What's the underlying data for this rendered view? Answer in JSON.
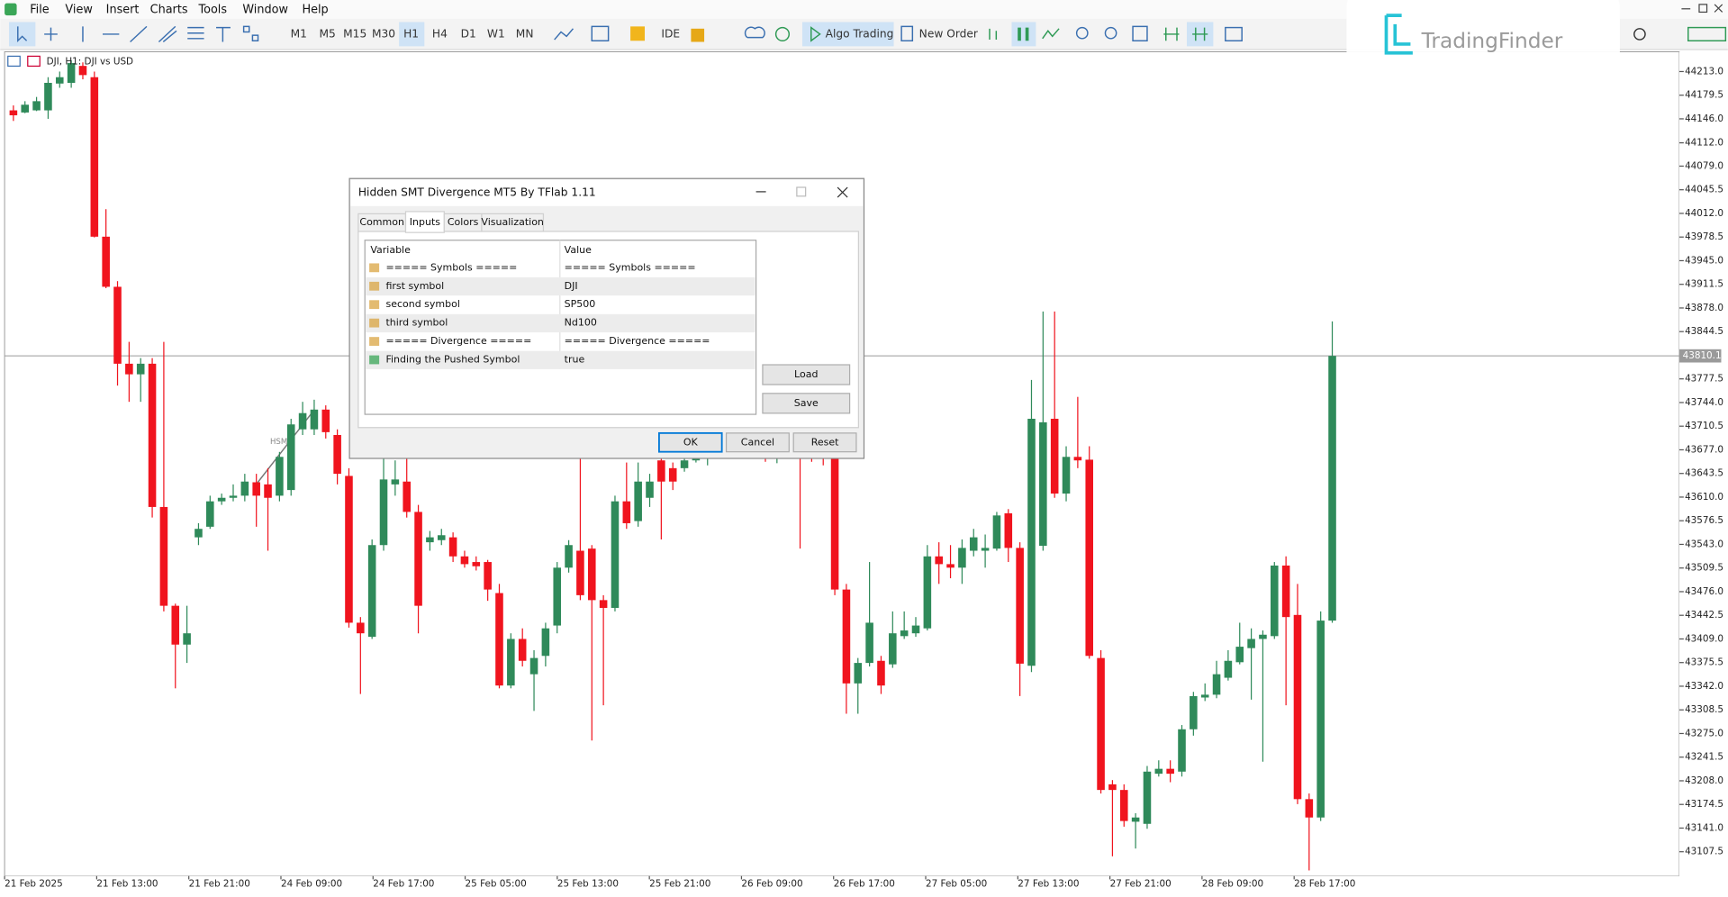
{
  "menu": [
    "File",
    "View",
    "Insert",
    "Charts",
    "Tools",
    "Window",
    "Help"
  ],
  "toolbar": {
    "timeframes": [
      "M1",
      "M5",
      "M15",
      "M30",
      "H1",
      "H4",
      "D1",
      "W1",
      "MN"
    ],
    "active_timeframe": "H1",
    "ide": "IDE",
    "algo_trading": "Algo Trading",
    "new_order": "New Order"
  },
  "watermark": "TradingFinder",
  "chart_data": {
    "type": "candlestick",
    "title": "DJI, H1: DJI vs USD",
    "up_color": "#2f8a5a",
    "down_color": "#f0141e",
    "open": [
      44158,
      44155,
      44158,
      44158,
      44196,
      44197,
      44221,
      44205,
      43979,
      43908,
      43799,
      43784,
      43799,
      43596,
      43456,
      43401,
      43553,
      43568,
      43604,
      43609,
      43612,
      43631,
      43628,
      43612,
      43620,
      43706,
      43706,
      43734,
      43698,
      43640,
      43432,
      43412,
      43542,
      43628,
      43632,
      43589,
      43546,
      43549,
      43553,
      43526,
      43518,
      43518,
      43474,
      43343,
      43409,
      43359,
      43385,
      43428,
      43510,
      43534,
      43537,
      43464,
      43453,
      43604,
      43576,
      43609,
      43662,
      43651,
      43651,
      43662,
      43667,
      43682,
      43676,
      43698,
      43712,
      43688,
      43668,
      43684,
      43702,
      43690,
      43672,
      43667,
      43479,
      43346,
      43375,
      43378,
      43373,
      43413,
      43417,
      43424,
      43526,
      43515,
      43510,
      43534,
      43534,
      43537,
      43587,
      43538,
      43371,
      43541,
      43721,
      43615,
      43667,
      43663,
      43382,
      43203,
      43195,
      43150,
      43147,
      43218,
      43225,
      43221,
      43281,
      43326,
      43330,
      43354,
      43376,
      43396,
      43409,
      43413,
      43513,
      43443,
      43182,
      43156,
      43435
    ],
    "high": [
      44165,
      44171,
      44177,
      44205,
      44213,
      44229,
      44226,
      44213,
      44018,
      43916,
      43830,
      43807,
      43807,
      43830,
      43459,
      43456,
      43573,
      43612,
      43615,
      43628,
      43643,
      43643,
      43651,
      43674,
      43721,
      43745,
      43748,
      43740,
      43706,
      43651,
      43440,
      43550,
      43667,
      43662,
      43667,
      43599,
      43562,
      43565,
      43560,
      43534,
      43526,
      43521,
      43487,
      43417,
      43424,
      43393,
      43432,
      43518,
      43549,
      43667,
      43542,
      43471,
      43612,
      43659,
      43659,
      43643,
      43674,
      43659,
      43670,
      43672,
      43690,
      43698,
      43705,
      43720,
      43725,
      43700,
      43690,
      43710,
      43715,
      43705,
      43690,
      43674,
      43487,
      43382,
      43518,
      43385,
      43448,
      43448,
      43440,
      43542,
      43546,
      43542,
      43550,
      43565,
      43557,
      43589,
      43593,
      43546,
      43776,
      43873,
      43873,
      43682,
      43752,
      43682,
      43393,
      43209,
      43203,
      43162,
      43229,
      43237,
      43237,
      43287,
      43334,
      43346,
      43378,
      43393,
      43432,
      43424,
      43421,
      43518,
      43526,
      43487,
      43190,
      43448,
      43859
    ],
    "low": [
      44143,
      44154,
      44157,
      44146,
      44190,
      44190,
      44202,
      43978,
      43906,
      43768,
      43745,
      43745,
      43581,
      43448,
      43339,
      43375,
      43542,
      43565,
      43599,
      43604,
      43604,
      43568,
      43534,
      43604,
      43612,
      43698,
      43698,
      43693,
      43628,
      43425,
      43331,
      43409,
      43534,
      43612,
      43581,
      43417,
      43534,
      43542,
      43518,
      43510,
      43506,
      43463,
      43339,
      43339,
      43370,
      43307,
      43370,
      43417,
      43503,
      43464,
      43265,
      43315,
      43448,
      43565,
      43568,
      43596,
      43550,
      43620,
      43646,
      43659,
      43655,
      43670,
      43668,
      43690,
      43680,
      43660,
      43658,
      43675,
      43537,
      43660,
      43655,
      43471,
      43303,
      43303,
      43370,
      43331,
      43368,
      43409,
      43412,
      43421,
      43487,
      43495,
      43487,
      43526,
      43510,
      43534,
      43518,
      43328,
      43362,
      43534,
      43609,
      43604,
      43651,
      43381,
      43190,
      43101,
      43143,
      43112,
      43140,
      43214,
      43206,
      43214,
      43272,
      43321,
      43325,
      43350,
      43373,
      43323,
      43235,
      43409,
      43315,
      43175,
      43081,
      43151,
      43432
    ],
    "close": [
      44151,
      44166,
      44171,
      44197,
      44205,
      44225,
      44208,
      43979,
      43908,
      43799,
      43784,
      43799,
      43596,
      43456,
      43401,
      43417,
      43565,
      43604,
      43609,
      43612,
      43632,
      43612,
      43609,
      43667,
      43713,
      43729,
      43734,
      43702,
      43643,
      43432,
      43417,
      43542,
      43635,
      43635,
      43589,
      43456,
      43553,
      43556,
      43526,
      43515,
      43512,
      43479,
      43343,
      43409,
      43378,
      43382,
      43424,
      43510,
      43542,
      43471,
      43464,
      43453,
      43604,
      43573,
      43632,
      43632,
      43632,
      43632,
      43662,
      43667,
      43682,
      43676,
      43698,
      43712,
      43688,
      43668,
      43684,
      43702,
      43690,
      43672,
      43666,
      43479,
      43346,
      43375,
      43432,
      43343,
      43417,
      43421,
      43428,
      43526,
      43515,
      43510,
      43538,
      43553,
      43538,
      43584,
      43538,
      43374,
      43721,
      43716,
      43615,
      43667,
      43662,
      43385,
      43195,
      43195,
      43151,
      43156,
      43221,
      43225,
      43218,
      43281,
      43328,
      43330,
      43359,
      43378,
      43398,
      43409,
      43415,
      43513,
      43440,
      43182,
      43156,
      43435,
      43810
    ],
    "ylim": [
      43073,
      44241
    ],
    "yticks": [
      {
        "value": 44213,
        "label": "44213.0"
      },
      44179.5,
      {
        "value": 44146,
        "label": "44146.0"
      },
      {
        "value": 44112,
        "label": "44112.0"
      },
      {
        "value": 44079,
        "label": "44079.0"
      },
      44045.5,
      {
        "value": 44012,
        "label": "44012.0"
      },
      43978.5,
      {
        "value": 43945,
        "label": "43945.0"
      },
      43911.5,
      {
        "value": 43878,
        "label": "43878.0"
      },
      43844.5,
      43777.5,
      {
        "value": 43744,
        "label": "43744.0"
      },
      43710.5,
      {
        "value": 43677,
        "label": "43677.0"
      },
      43643.5,
      {
        "value": 43610,
        "label": "43610.0"
      },
      43576.5,
      {
        "value": 43543,
        "label": "43543.0"
      },
      43509.5,
      {
        "value": 43476,
        "label": "43476.0"
      },
      43442.5,
      {
        "value": 43409,
        "label": "43409.0"
      },
      43375.5,
      {
        "value": 43342,
        "label": "43342.0"
      },
      43308.5,
      {
        "value": 43275,
        "label": "43275.0"
      },
      43241.5,
      {
        "value": 43208,
        "label": "43208.0"
      },
      43174.5,
      {
        "value": 43141,
        "label": "43141.0"
      },
      43107.5
    ],
    "current_price": 43810.1,
    "xticks": [
      "21 Feb 2025",
      "21 Feb 13:00",
      "21 Feb 21:00",
      "24 Feb 09:00",
      "24 Feb 17:00",
      "25 Feb 05:00",
      "25 Feb 13:00",
      "25 Feb 21:00",
      "26 Feb 09:00",
      "26 Feb 17:00",
      "27 Feb 05:00",
      "27 Feb 13:00",
      "27 Feb 21:00",
      "28 Feb 09:00",
      "28 Feb 17:00"
    ],
    "annotation": "HSMT"
  },
  "dialog": {
    "title": "Hidden SMT Divergence MT5 By TFlab 1.11",
    "tabs": [
      "Common",
      "Inputs",
      "Colors",
      "Visualization"
    ],
    "active_tab": "Inputs",
    "table": {
      "header": [
        "Variable",
        "Value"
      ],
      "rows": [
        [
          "===== Symbols =====",
          "===== Symbols ====="
        ],
        [
          "first symbol",
          "DJI"
        ],
        [
          "second symbol",
          "SP500"
        ],
        [
          "third symbol",
          "Nd100"
        ],
        [
          "===== Divergence =====",
          "===== Divergence ====="
        ],
        [
          "Finding the Pushed Symbol",
          "true"
        ]
      ]
    },
    "side_buttons": [
      "Load",
      "Save"
    ],
    "buttons": [
      "OK",
      "Cancel",
      "Reset"
    ]
  }
}
